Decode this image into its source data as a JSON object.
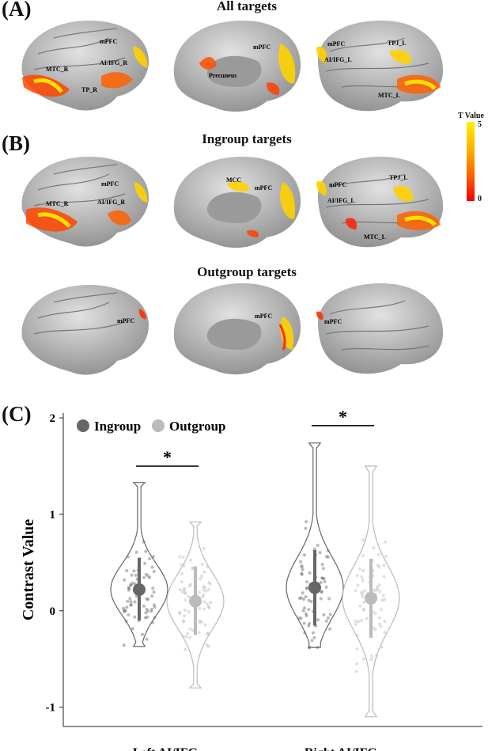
{
  "panels": {
    "A": {
      "letter": "(A)",
      "title": "All targets"
    },
    "B": {
      "letter": "(B)",
      "title": "Ingroup targets"
    },
    "B2": {
      "title": "Outgroup targets"
    },
    "C": {
      "letter": "(C)"
    }
  },
  "brain_labels": {
    "A_lat_r": [
      "mPFC",
      "AI/IFG_R",
      "MTC_R",
      "TP_R"
    ],
    "A_med": [
      "mPFC",
      "Precuneus"
    ],
    "A_lat_l": [
      "mPFC",
      "AI/IFG_L",
      "TPJ_L",
      "MTC_L"
    ],
    "B_lat_r": [
      "mPFC",
      "MTC_R",
      "AI/IFG_R"
    ],
    "B_med": [
      "MCC",
      "mPFC"
    ],
    "B_lat_l": [
      "mPFC",
      "AI/IFG_L",
      "TPJ_L",
      "MTC_L"
    ],
    "O_lat_r": [
      "mPFC"
    ],
    "O_med": [
      "mPFC"
    ],
    "O_lat_l": [
      "mPFC"
    ]
  },
  "colorbar": {
    "title": "T Value",
    "max": "5",
    "min": "0",
    "colors": [
      "#fff000",
      "#ff5a00",
      "#f00000"
    ]
  },
  "chart_data": {
    "type": "violin",
    "xlabel": "",
    "ylabel": "Contrast Value",
    "ylim": [
      -1.2,
      2.05
    ],
    "yticks": [
      -1,
      0,
      1,
      2
    ],
    "categories": [
      "Left AI/IFG",
      "Right AI/IFG"
    ],
    "legend": {
      "placement": "top-left",
      "entries": [
        "Ingroup",
        "Outgroup"
      ]
    },
    "series": [
      {
        "name": "Ingroup",
        "color": "#666666",
        "mean": [
          0.22,
          0.24
        ],
        "sd_low": [
          -0.1,
          -0.15
        ],
        "sd_high": [
          0.55,
          0.63
        ],
        "min": [
          -0.37,
          -0.38
        ],
        "max": [
          1.33,
          1.74
        ]
      },
      {
        "name": "Outgroup",
        "color": "#bbbbbb",
        "mean": [
          0.1,
          0.13
        ],
        "sd_low": [
          -0.25,
          -0.28
        ],
        "sd_high": [
          0.46,
          0.54
        ],
        "min": [
          -0.8,
          -1.1
        ],
        "max": [
          0.92,
          1.5
        ]
      }
    ],
    "significance": [
      {
        "category": "Left AI/IFG",
        "label": "*",
        "y": 1.5
      },
      {
        "category": "Right AI/IFG",
        "label": "*",
        "y": 1.92
      }
    ]
  }
}
